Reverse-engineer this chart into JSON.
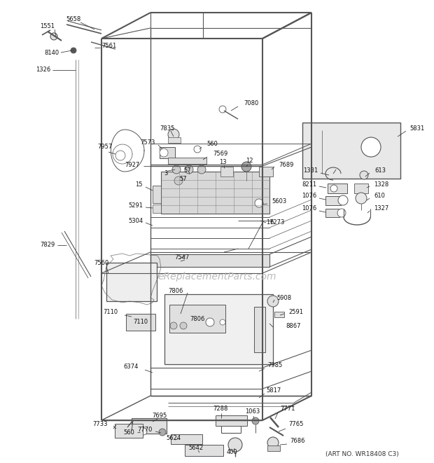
{
  "art_no": "(ART NO. WR18408 C3)",
  "watermark": "eReplacementParts.com",
  "bg_color": "#ffffff",
  "line_color": "#555555",
  "text_color": "#111111",
  "fig_width": 6.2,
  "fig_height": 6.61,
  "dpi": 100
}
